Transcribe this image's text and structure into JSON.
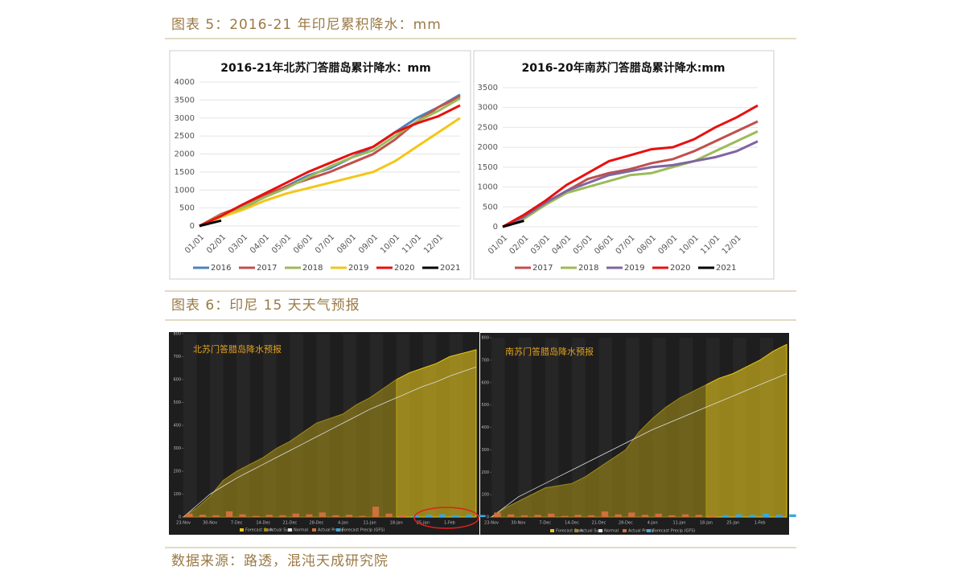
{
  "captions": [
    "图表 5：2016-21 年印尼累积降水：mm",
    "图表 6：印尼 15 天天气预报"
  ],
  "source": "数据来源：路透，混沌天成研究院",
  "chart_data": [
    {
      "type": "line",
      "title": "2016-21年北苏门答腊岛累计降水：mm",
      "categories": [
        "01/01",
        "02/01",
        "03/01",
        "04/01",
        "05/01",
        "06/01",
        "07/01",
        "08/01",
        "09/01",
        "10/01",
        "11/01",
        "12/01",
        null
      ],
      "ylim": [
        0,
        4000
      ],
      "yticks": [
        0,
        500,
        1000,
        1500,
        2000,
        2500,
        3000,
        3500,
        4000
      ],
      "grid": true,
      "series": [
        {
          "name": "2016",
          "color": "#4f81bd",
          "values": [
            0,
            300,
            500,
            800,
            1100,
            1400,
            1600,
            1900,
            2200,
            2600,
            3000,
            3300,
            3650
          ]
        },
        {
          "name": "2017",
          "color": "#c0504d",
          "values": [
            0,
            330,
            550,
            850,
            1100,
            1300,
            1500,
            1750,
            2000,
            2400,
            2900,
            3300,
            3600
          ]
        },
        {
          "name": "2018",
          "color": "#9bbb59",
          "values": [
            0,
            300,
            520,
            800,
            1050,
            1350,
            1650,
            1900,
            2100,
            2500,
            2900,
            3200,
            3550
          ]
        },
        {
          "name": "2019",
          "color": "#f5c518",
          "values": [
            0,
            250,
            450,
            700,
            900,
            1050,
            1200,
            1350,
            1500,
            1800,
            2200,
            2600,
            3000
          ]
        },
        {
          "name": "2020",
          "color": "#e81010",
          "values": [
            0,
            280,
            600,
            900,
            1200,
            1500,
            1750,
            2000,
            2200,
            2600,
            2850,
            3050,
            3350
          ]
        },
        {
          "name": "2021",
          "color": "#000000",
          "values": [
            0,
            150,
            null,
            null,
            null,
            null,
            null,
            null,
            null,
            null,
            null,
            null,
            null
          ]
        }
      ]
    },
    {
      "type": "line",
      "title": "2016-20年南苏门答腊岛累计降水:mm",
      "categories": [
        "01/01",
        "02/01",
        "03/01",
        "04/01",
        "05/01",
        "06/01",
        "07/01",
        "08/01",
        "09/01",
        "10/01",
        "11/01",
        "12/01",
        null
      ],
      "ylim": [
        0,
        3500
      ],
      "yticks": [
        0,
        500,
        1000,
        1500,
        2000,
        2500,
        3000,
        3500
      ],
      "grid": true,
      "series": [
        {
          "name": "2017",
          "color": "#c0504d",
          "values": [
            0,
            250,
            600,
            900,
            1200,
            1350,
            1450,
            1600,
            1700,
            1900,
            2150,
            2400,
            2650
          ]
        },
        {
          "name": "2018",
          "color": "#9bbb59",
          "values": [
            0,
            200,
            550,
            850,
            1000,
            1150,
            1300,
            1350,
            1500,
            1650,
            1900,
            2150,
            2400
          ]
        },
        {
          "name": "2019",
          "color": "#8064a2",
          "values": [
            0,
            250,
            600,
            900,
            1100,
            1300,
            1400,
            1500,
            1550,
            1650,
            1750,
            1900,
            2150
          ]
        },
        {
          "name": "2020",
          "color": "#e81010",
          "values": [
            0,
            300,
            650,
            1050,
            1350,
            1650,
            1800,
            1950,
            2000,
            2200,
            2500,
            2750,
            3050
          ]
        },
        {
          "name": "2021",
          "color": "#000000",
          "values": [
            0,
            150,
            null,
            null,
            null,
            null,
            null,
            null,
            null,
            null,
            null,
            null,
            null
          ]
        }
      ]
    },
    {
      "type": "forecast",
      "title": "北苏门答腊岛降水预报",
      "categories": [
        "23-Nov",
        null,
        "30-Nov",
        null,
        "7-Dec",
        null,
        "14-Dec",
        null,
        "21-Dec",
        null,
        "28-Dec",
        null,
        "4-Jan",
        null,
        "11-Jan",
        null,
        "18-Jan",
        null,
        "25-Jan",
        null,
        "1-Feb",
        null,
        null
      ],
      "ylim": [
        0,
        800
      ],
      "yticks": [
        0,
        100,
        200,
        300,
        400,
        500,
        600,
        700,
        800
      ],
      "series": [
        {
          "name": "Forecast Sum",
          "color": "#e6c619",
          "style": "area",
          "values": [
            null,
            null,
            null,
            null,
            null,
            null,
            null,
            null,
            null,
            null,
            null,
            null,
            null,
            null,
            null,
            null,
            600,
            630,
            650,
            670,
            700,
            715,
            730
          ]
        },
        {
          "name": "Actual Sum",
          "color": "#a08a18",
          "style": "area",
          "values": [
            0,
            40,
            90,
            160,
            200,
            230,
            260,
            300,
            330,
            370,
            410,
            430,
            450,
            490,
            520,
            560,
            600,
            null,
            null,
            null,
            null,
            null,
            null
          ]
        },
        {
          "name": "Normal",
          "color": "#dddddd",
          "style": "line",
          "values": [
            0,
            50,
            100,
            135,
            170,
            200,
            230,
            260,
            290,
            320,
            350,
            380,
            410,
            440,
            470,
            495,
            520,
            545,
            570,
            590,
            615,
            635,
            655
          ]
        },
        {
          "name": "Actual Precip",
          "color": "#d0703a",
          "style": "bar",
          "values": [
            15,
            10,
            8,
            25,
            12,
            5,
            10,
            8,
            15,
            12,
            20,
            8,
            10,
            5,
            45,
            15,
            10,
            null,
            null,
            null,
            null,
            null,
            null
          ]
        },
        {
          "name": "Forecast Precip (GFS)",
          "color": "#3aa8e0",
          "style": "bar",
          "values": [
            null,
            null,
            null,
            null,
            null,
            null,
            null,
            null,
            null,
            null,
            null,
            null,
            null,
            null,
            null,
            null,
            null,
            8,
            10,
            12,
            8,
            10,
            9
          ]
        }
      ]
    },
    {
      "type": "forecast",
      "title": "南苏门答腊岛降水预报",
      "categories": [
        "23-Nov",
        null,
        "30-Nov",
        null,
        "7-Dec",
        null,
        "14-Dec",
        null,
        "21-Dec",
        null,
        "28-Dec",
        null,
        "4-Jan",
        null,
        "11-Jan",
        null,
        "18-Jan",
        null,
        "25-Jan",
        null,
        "1-Feb",
        null,
        null
      ],
      "ylim": [
        0,
        800
      ],
      "yticks": [
        0,
        100,
        200,
        300,
        400,
        500,
        600,
        700,
        800
      ],
      "series": [
        {
          "name": "Forecast Sum",
          "color": "#e6c619",
          "style": "area",
          "values": [
            null,
            null,
            null,
            null,
            null,
            null,
            null,
            null,
            null,
            null,
            null,
            null,
            null,
            null,
            null,
            null,
            590,
            620,
            640,
            670,
            700,
            740,
            770
          ]
        },
        {
          "name": "Actual Sum",
          "color": "#a08a18",
          "style": "area",
          "values": [
            0,
            40,
            70,
            100,
            130,
            140,
            150,
            180,
            220,
            260,
            300,
            380,
            440,
            490,
            530,
            560,
            590,
            null,
            null,
            null,
            null,
            null,
            null
          ]
        },
        {
          "name": "Normal",
          "color": "#dddddd",
          "style": "line",
          "values": [
            0,
            45,
            90,
            120,
            150,
            180,
            210,
            240,
            270,
            300,
            330,
            360,
            390,
            415,
            440,
            465,
            490,
            515,
            540,
            565,
            590,
            615,
            640
          ]
        },
        {
          "name": "Actual Precip",
          "color": "#d0703a",
          "style": "bar",
          "values": [
            20,
            12,
            8,
            10,
            15,
            5,
            10,
            8,
            25,
            12,
            20,
            10,
            15,
            8,
            12,
            10,
            8,
            null,
            null,
            null,
            null,
            null,
            null
          ]
        },
        {
          "name": "Forecast Precip (GFS)",
          "color": "#3aa8e0",
          "style": "bar",
          "values": [
            null,
            null,
            null,
            null,
            null,
            null,
            null,
            null,
            null,
            null,
            null,
            null,
            null,
            null,
            null,
            null,
            null,
            8,
            12,
            10,
            15,
            10,
            12
          ]
        }
      ]
    }
  ]
}
